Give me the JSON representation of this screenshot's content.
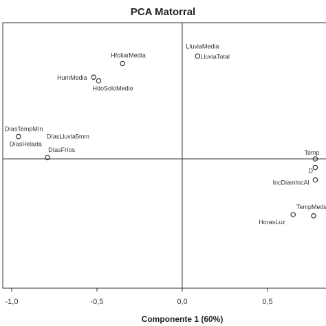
{
  "chart_data": {
    "type": "scatter",
    "title": "PCA Matorral",
    "xlabel": "Componente 1 (60%)",
    "ylabel": "",
    "xlim": [
      -1.05,
      0.78
    ],
    "ylim": [
      -1.02,
      1.02
    ],
    "x_ticks": [
      "-1,0",
      "-0,5",
      "0,0",
      "0,5"
    ],
    "x_tick_values": [
      -1.0,
      -0.5,
      0.0,
      0.5
    ],
    "grid": false,
    "reference_lines": {
      "x": 0,
      "y": 0
    },
    "points": [
      {
        "label": "LluviaMedia",
        "x": 0.09,
        "y": 0.83
      },
      {
        "label": "LluviaTotal",
        "x": 0.09,
        "y": 0.83
      },
      {
        "label": "HfoliarMedia",
        "x": -0.35,
        "y": 0.77
      },
      {
        "label": "HumMedia",
        "x": -0.52,
        "y": 0.66
      },
      {
        "label": "HdoSoloMedio",
        "x": -0.49,
        "y": 0.63
      },
      {
        "label": "DíasTempMín",
        "x": -0.96,
        "y": 0.18
      },
      {
        "label": "DíasLluvia5mm",
        "x": -0.96,
        "y": 0.18
      },
      {
        "label": "DíasHelada",
        "x": -0.96,
        "y": 0.18
      },
      {
        "label": "DíasFríos",
        "x": -0.79,
        "y": 0.01
      },
      {
        "label": "Temp",
        "x": 0.78,
        "y": 0.0
      },
      {
        "label": "D",
        "x": 0.78,
        "y": -0.07
      },
      {
        "label": "IncDiamIncAl",
        "x": 0.78,
        "y": -0.17
      },
      {
        "label": "TempMedia",
        "x": 0.77,
        "y": -0.46
      },
      {
        "label": "HorasLuz",
        "x": 0.65,
        "y": -0.45
      }
    ]
  }
}
